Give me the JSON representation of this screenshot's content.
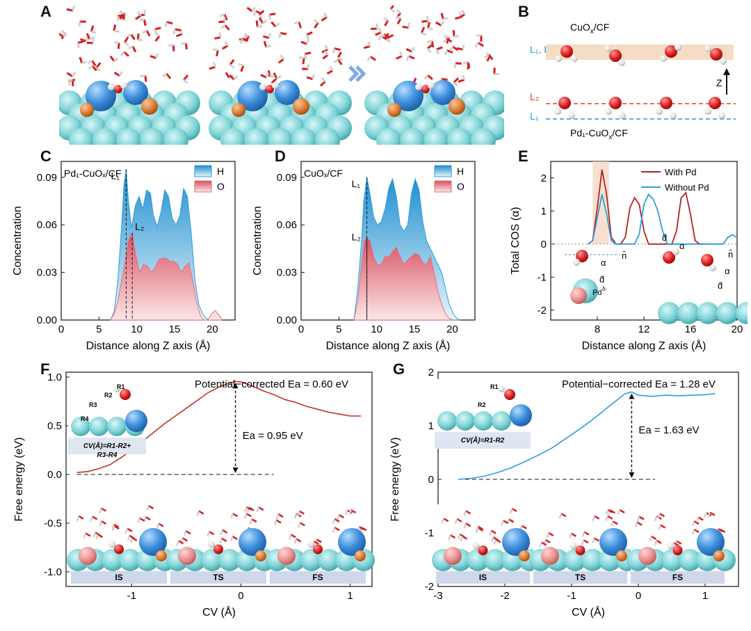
{
  "panel_letters": {
    "A": "A",
    "B": "B",
    "C": "C",
    "D": "D",
    "E": "E",
    "F": "F",
    "G": "G"
  },
  "colors": {
    "h_fill": "#2e9fd6",
    "o_fill": "#e07080",
    "with_pd": "#b22222",
    "without_pd": "#2a9de0",
    "free_F": "#c0302a",
    "free_G": "#2a9de0",
    "highlight": "#f5d9c2",
    "cyan": "#7fd3d6"
  },
  "panelB": {
    "top_label": "CuO",
    "top_label_sub": "x",
    "top_label_rest": "/CF",
    "top_layer_label": "L₁, L₂",
    "bottom_L2": "L₂",
    "bottom_L1": "L₁",
    "z_label": "Z",
    "bottom_label": "Pd₁-CuO",
    "bottom_label_sub": "x",
    "bottom_label_rest": "/CF"
  },
  "chart_data": [
    {
      "panel": "C",
      "type": "area",
      "legend_title": "Pd₁-CuOₓ/CF",
      "xlabel": "Distance along Z axis (Å)",
      "ylabel": "Concentration",
      "xlim": [
        0,
        23
      ],
      "ylim": [
        0,
        0.1
      ],
      "xticks": [
        0,
        5,
        10,
        15,
        20
      ],
      "yticks": [
        "0.00",
        "0.03",
        "0.06",
        "0.09"
      ],
      "annotations": [
        {
          "text": "L₁",
          "x": 8.6
        },
        {
          "text": "L₂",
          "x": 9.4
        }
      ],
      "series": [
        {
          "name": "H",
          "x": [
            6.5,
            7,
            7.5,
            8,
            8.3,
            8.6,
            8.9,
            9.3,
            9.8,
            10.3,
            10.8,
            11.3,
            11.8,
            12.2,
            12.7,
            13.2,
            13.7,
            14.2,
            14.7,
            15.2,
            15.7,
            16.2,
            16.7,
            17.2,
            17.7,
            18.2,
            18.7,
            19.2,
            19.7
          ],
          "values": [
            0.0,
            0.005,
            0.025,
            0.06,
            0.085,
            0.095,
            0.075,
            0.058,
            0.072,
            0.078,
            0.07,
            0.082,
            0.08,
            0.066,
            0.059,
            0.068,
            0.082,
            0.078,
            0.064,
            0.06,
            0.066,
            0.083,
            0.078,
            0.055,
            0.025,
            0.01,
            0.004,
            0.001,
            0.0
          ]
        },
        {
          "name": "O",
          "x": [
            6.5,
            7,
            7.5,
            8,
            8.5,
            8.9,
            9.4,
            9.9,
            10.4,
            10.9,
            11.4,
            11.9,
            12.4,
            12.9,
            13.4,
            13.9,
            14.4,
            14.9,
            15.4,
            15.9,
            16.4,
            16.9,
            17.4,
            17.9,
            18.4,
            18.9,
            19.4,
            19.9,
            20.4,
            20.9,
            21.3
          ],
          "values": [
            0.0,
            0.004,
            0.012,
            0.025,
            0.038,
            0.05,
            0.055,
            0.04,
            0.03,
            0.035,
            0.034,
            0.03,
            0.033,
            0.038,
            0.039,
            0.039,
            0.037,
            0.037,
            0.035,
            0.03,
            0.034,
            0.036,
            0.025,
            0.012,
            0.003,
            0.0,
            0.0,
            0.004,
            0.006,
            0.003,
            0.0
          ]
        }
      ]
    },
    {
      "panel": "D",
      "type": "area",
      "legend_title": "CuOₓ/CF",
      "xlabel": "Distance along Z axis (Å)",
      "ylabel": "Concentration",
      "xlim": [
        0,
        23
      ],
      "ylim": [
        0,
        0.1
      ],
      "xticks": [
        0,
        5,
        10,
        15,
        20
      ],
      "yticks": [
        "0.00",
        "0.03",
        "0.06",
        "0.09"
      ],
      "annotations": [
        {
          "text": "L₁",
          "x": 8.7
        },
        {
          "text": "L₂",
          "x": 8.7
        }
      ],
      "series": [
        {
          "name": "H",
          "x": [
            7,
            7.5,
            8,
            8.3,
            8.7,
            9.1,
            9.6,
            10.1,
            10.6,
            11.1,
            11.6,
            12.1,
            12.6,
            13.1,
            13.6,
            14.1,
            14.6,
            15.1,
            15.6,
            16.1,
            16.6,
            17.1,
            17.6,
            18.1,
            18.6,
            19.1,
            19.6,
            20.1,
            20.6,
            21.1
          ],
          "values": [
            0.0,
            0.02,
            0.05,
            0.075,
            0.09,
            0.08,
            0.065,
            0.06,
            0.062,
            0.07,
            0.083,
            0.089,
            0.078,
            0.06,
            0.056,
            0.06,
            0.08,
            0.089,
            0.082,
            0.062,
            0.05,
            0.045,
            0.04,
            0.035,
            0.03,
            0.02,
            0.01,
            0.004,
            0.001,
            0.0
          ]
        },
        {
          "name": "O",
          "x": [
            7,
            7.5,
            8,
            8.4,
            8.7,
            9.1,
            9.6,
            10.1,
            10.6,
            11.1,
            11.6,
            12.1,
            12.6,
            13.1,
            13.6,
            14.1,
            14.6,
            15.1,
            15.6,
            16.1,
            16.6,
            17.1,
            17.6,
            18.1,
            18.6,
            19.1,
            19.6,
            20.1
          ],
          "values": [
            0.0,
            0.012,
            0.035,
            0.05,
            0.052,
            0.05,
            0.04,
            0.035,
            0.035,
            0.04,
            0.04,
            0.043,
            0.046,
            0.04,
            0.035,
            0.038,
            0.04,
            0.042,
            0.041,
            0.036,
            0.035,
            0.04,
            0.03,
            0.018,
            0.01,
            0.004,
            0.001,
            0.0
          ]
        }
      ]
    },
    {
      "panel": "E",
      "type": "line",
      "xlabel": "Distance along Z axis (Å)",
      "ylabel": "Total COS (α)",
      "xlim": [
        4,
        20
      ],
      "ylim": [
        -2.3,
        2.5
      ],
      "xticks": [
        8,
        12,
        16,
        20
      ],
      "yticks": [
        -2,
        -1,
        0,
        1,
        2
      ],
      "legend_position": "top-right",
      "series": [
        {
          "name": "With Pd",
          "x": [
            7.2,
            7.6,
            8.0,
            8.4,
            8.8,
            9.2,
            9.6,
            10.0,
            10.4,
            10.8,
            11.2,
            11.6,
            12.0,
            12.4,
            12.8,
            13.2,
            13.6,
            14.0,
            14.4,
            14.8,
            15.2,
            15.6,
            16.0,
            16.4,
            16.8,
            17.2
          ],
          "values": [
            0,
            0.1,
            1.1,
            2.25,
            1.5,
            0.2,
            0,
            0,
            0.2,
            1.1,
            1.4,
            1.2,
            0.4,
            0,
            0,
            0,
            0,
            0,
            0,
            0.4,
            1.4,
            1.55,
            0.9,
            0.1,
            0,
            0
          ]
        },
        {
          "name": "Without Pd",
          "x": [
            7.2,
            7.6,
            8.0,
            8.4,
            8.8,
            9.2,
            9.6,
            10.0,
            10.4,
            10.8,
            11.2,
            11.6,
            12.0,
            12.4,
            12.8,
            13.2,
            13.6,
            14.0,
            14.4,
            14.8,
            15.2,
            15.6,
            16.0,
            16.4,
            16.8,
            17.2,
            17.6,
            18.0,
            18.4,
            18.8,
            19.2,
            19.6,
            20.0
          ],
          "values": [
            0,
            0.1,
            0.8,
            1.5,
            0.9,
            0.1,
            0,
            0,
            0,
            0,
            0,
            0.3,
            1.2,
            1.5,
            1.35,
            1.0,
            0.4,
            0,
            0,
            0,
            0,
            0,
            0,
            0,
            0,
            0,
            0,
            0,
            0,
            0,
            0.2,
            0.28,
            0.2
          ]
        }
      ],
      "inset_labels": {
        "n_hat": "n̂",
        "alpha": "α",
        "d_hat": "d̂",
        "pd": "Pd",
        "pd_sup": "δ-"
      }
    },
    {
      "panel": "F",
      "type": "line",
      "xlabel": "CV (Å)",
      "ylabel": "Free energy (eV)",
      "xlim": [
        -1.6,
        1.2
      ],
      "ylim": [
        -1.15,
        1.05
      ],
      "xticks": [
        -1,
        0,
        1
      ],
      "yticks": [
        "-1.0",
        "-0.5",
        "0.0",
        "0.5",
        "1.0"
      ],
      "title": "Potential−corrected Ea = 0.60 eV",
      "ea_label": "Ea = 0.95 eV",
      "inset_formula_line1": "CV(Å)=R1-R2+",
      "inset_formula_line2": "R3-R4",
      "inset_bond_labels": [
        "R1",
        "R2",
        "R3",
        "R4"
      ],
      "state_labels": [
        "IS",
        "TS",
        "FS"
      ],
      "series": [
        {
          "name": "",
          "x": [
            -1.5,
            -1.4,
            -1.3,
            -1.2,
            -1.1,
            -1.0,
            -0.9,
            -0.8,
            -0.7,
            -0.6,
            -0.5,
            -0.4,
            -0.3,
            -0.2,
            -0.1,
            -0.05,
            0.0,
            0.1,
            0.2,
            0.3,
            0.4,
            0.5,
            0.6,
            0.7,
            0.8,
            0.9,
            1.0,
            1.1
          ],
          "values": [
            0.02,
            0.03,
            0.06,
            0.1,
            0.17,
            0.25,
            0.34,
            0.43,
            0.52,
            0.6,
            0.68,
            0.76,
            0.84,
            0.9,
            0.94,
            0.955,
            0.95,
            0.91,
            0.86,
            0.82,
            0.77,
            0.74,
            0.7,
            0.67,
            0.64,
            0.62,
            0.6,
            0.6
          ]
        }
      ]
    },
    {
      "panel": "G",
      "type": "line",
      "xlabel": "CV (Å)",
      "ylabel": "Free energy (eV)",
      "xlim": [
        -3,
        1.5
      ],
      "ylim": [
        -2,
        2
      ],
      "xticks": [
        -3,
        -2,
        -1,
        0,
        1
      ],
      "yticks": [
        -2,
        -1,
        0,
        1,
        2
      ],
      "title": "Potential−corrected Ea = 1.28 eV",
      "ea_label": "Ea = 1.63 eV",
      "inset_formula_line1": "CV(Å)=R1-R2",
      "inset_bond_labels": [
        "R1",
        "R2"
      ],
      "state_labels": [
        "IS",
        "TS",
        "FS"
      ],
      "series": [
        {
          "name": "",
          "x": [
            -2.7,
            -2.5,
            -2.3,
            -2.1,
            -1.9,
            -1.7,
            -1.5,
            -1.3,
            -1.1,
            -0.9,
            -0.7,
            -0.5,
            -0.3,
            -0.2,
            -0.1,
            0.0,
            0.2,
            0.4,
            0.6,
            0.8,
            1.0,
            1.15
          ],
          "values": [
            0.0,
            0.02,
            0.06,
            0.13,
            0.22,
            0.33,
            0.45,
            0.58,
            0.75,
            0.92,
            1.1,
            1.3,
            1.5,
            1.6,
            1.63,
            1.57,
            1.55,
            1.57,
            1.56,
            1.57,
            1.58,
            1.6
          ]
        }
      ]
    }
  ]
}
